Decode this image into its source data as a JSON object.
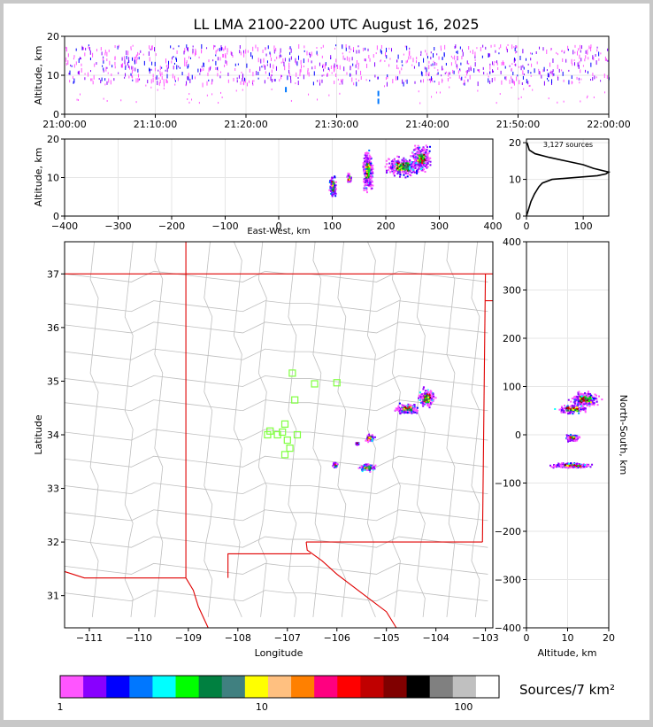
{
  "title": "LL LMA 2100-2200 UTC August 16, 2025",
  "colors": {
    "background": "#ffffff",
    "frame": "#c8c8c8",
    "state_border": "#e00000",
    "county_border": "#bfbfbf",
    "station_marker": "#80ff40"
  },
  "colorbar": {
    "label": "Sources/7 km²",
    "tick_labels": [
      "1",
      "10",
      "100"
    ],
    "tick_values": [
      1,
      10,
      100
    ],
    "scale": "log",
    "range": [
      1,
      150
    ],
    "colors": [
      "#ff55ff",
      "#8800ff",
      "#0000ff",
      "#0077ff",
      "#00ffff",
      "#00ff00",
      "#008040",
      "#408080",
      "#ffff00",
      "#ffc080",
      "#ff8000",
      "#ff0080",
      "#ff0000",
      "#c00000",
      "#800000",
      "#000000",
      "#808080",
      "#c0c0c0",
      "#ffffff"
    ]
  },
  "stats": {
    "sources_label": "3,127 sources"
  },
  "chart_data": [
    {
      "id": "time-altitude",
      "type": "scatter",
      "xlabel": "",
      "ylabel": "Altitude, km",
      "x_tick_labels": [
        "21:00:00",
        "21:10:00",
        "21:20:00",
        "21:30:00",
        "21:40:00",
        "21:50:00",
        "22:00:00"
      ],
      "xlim_minutes": [
        0,
        60
      ],
      "ylim": [
        0,
        20
      ],
      "y_ticks": [
        0,
        10,
        20
      ],
      "grid": true,
      "altitude_band_km": [
        8,
        18
      ],
      "core_altitude_km": 13,
      "low_points_km": [
        [
          24.3,
          7
        ],
        [
          34.5,
          4
        ],
        [
          34.5,
          6
        ]
      ]
    },
    {
      "id": "east-west-altitude",
      "type": "scatter",
      "xlabel": "East-West, km",
      "ylabel": "Altitude, km",
      "xlim": [
        -400,
        400
      ],
      "x_ticks": [
        -400,
        -300,
        -200,
        -100,
        0,
        100,
        200,
        300,
        400
      ],
      "ylim": [
        0,
        20
      ],
      "y_ticks": [
        0,
        10,
        20
      ],
      "grid": true,
      "clusters": [
        {
          "x": 100,
          "y": 8,
          "spread_x": 5,
          "spread_y": 2.5
        },
        {
          "x": 130,
          "y": 10,
          "spread_x": 3,
          "spread_y": 1
        },
        {
          "x": 165,
          "y": 12,
          "spread_x": 7,
          "spread_y": 4
        },
        {
          "x": 230,
          "y": 13,
          "spread_x": 25,
          "spread_y": 2
        },
        {
          "x": 265,
          "y": 15,
          "spread_x": 14,
          "spread_y": 2.5
        }
      ]
    },
    {
      "id": "altitude-histogram",
      "type": "line",
      "xlabel": "",
      "ylabel": "",
      "xlim": [
        0,
        145
      ],
      "x_ticks": [
        0,
        100
      ],
      "ylim": [
        0,
        21
      ],
      "y_ticks": [
        0,
        10,
        20
      ],
      "grid": true,
      "profile": [
        [
          0,
          0
        ],
        [
          2,
          1
        ],
        [
          4,
          2
        ],
        [
          6,
          3
        ],
        [
          8,
          4
        ],
        [
          11,
          5
        ],
        [
          14,
          6
        ],
        [
          18,
          7
        ],
        [
          22,
          8
        ],
        [
          28,
          9
        ],
        [
          45,
          10
        ],
        [
          125,
          11
        ],
        [
          140,
          11.5
        ],
        [
          145,
          12
        ],
        [
          118,
          13
        ],
        [
          100,
          14
        ],
        [
          70,
          15
        ],
        [
          40,
          16
        ],
        [
          15,
          17
        ],
        [
          5,
          18
        ],
        [
          3,
          19
        ],
        [
          1,
          20
        ]
      ]
    },
    {
      "id": "plan-view",
      "type": "scatter",
      "xlabel": "Longitude",
      "ylabel": "Latitude",
      "xlim": [
        -111.5,
        -102.85
      ],
      "x_ticks": [
        -111,
        -110,
        -109,
        -108,
        -107,
        -106,
        -105,
        -104,
        -103
      ],
      "ylim": [
        30.4,
        37.6
      ],
      "y_ticks": [
        31,
        32,
        33,
        34,
        35,
        36,
        37
      ],
      "grid": false,
      "stations": [
        [
          -106.9,
          35.15
        ],
        [
          -106.45,
          34.95
        ],
        [
          -106.0,
          34.97
        ],
        [
          -106.85,
          34.65
        ],
        [
          -107.35,
          34.07
        ],
        [
          -107.05,
          34.2
        ],
        [
          -107.1,
          34.05
        ],
        [
          -106.8,
          34.0
        ],
        [
          -107.4,
          34.0
        ],
        [
          -107.2,
          34.0
        ],
        [
          -107.0,
          33.9
        ],
        [
          -106.95,
          33.75
        ],
        [
          -107.05,
          33.63
        ]
      ],
      "clusters": [
        {
          "lon": -104.2,
          "lat": 34.7,
          "spread_lon": 0.15,
          "spread_lat": 0.15
        },
        {
          "lon": -104.6,
          "lat": 34.5,
          "spread_lon": 0.2,
          "spread_lat": 0.08
        },
        {
          "lon": -105.35,
          "lat": 33.95,
          "spread_lon": 0.08,
          "spread_lat": 0.06
        },
        {
          "lon": -105.4,
          "lat": 33.4,
          "spread_lon": 0.15,
          "spread_lat": 0.06
        },
        {
          "lon": -106.05,
          "lat": 33.45,
          "spread_lon": 0.04,
          "spread_lat": 0.04
        },
        {
          "lon": -105.6,
          "lat": 33.85,
          "spread_lon": 0.03,
          "spread_lat": 0.02
        }
      ]
    },
    {
      "id": "altitude-north-south",
      "type": "scatter",
      "xlabel": "Altitude, km",
      "ylabel": "North-South, km",
      "xlim": [
        0,
        20
      ],
      "x_ticks": [
        0,
        10,
        20
      ],
      "ylim": [
        -400,
        400
      ],
      "y_ticks": [
        -400,
        -300,
        -200,
        -100,
        0,
        100,
        200,
        300,
        400
      ],
      "grid": true,
      "clusters": [
        {
          "x": 14,
          "y": 75,
          "spread_x": 3,
          "spread_y": 12
        },
        {
          "x": 11,
          "y": 55,
          "spread_x": 3,
          "spread_y": 8
        },
        {
          "x": 11,
          "y": -5,
          "spread_x": 1.5,
          "spread_y": 6
        },
        {
          "x": 11,
          "y": -62,
          "spread_x": 4,
          "spread_y": 4
        }
      ]
    }
  ]
}
